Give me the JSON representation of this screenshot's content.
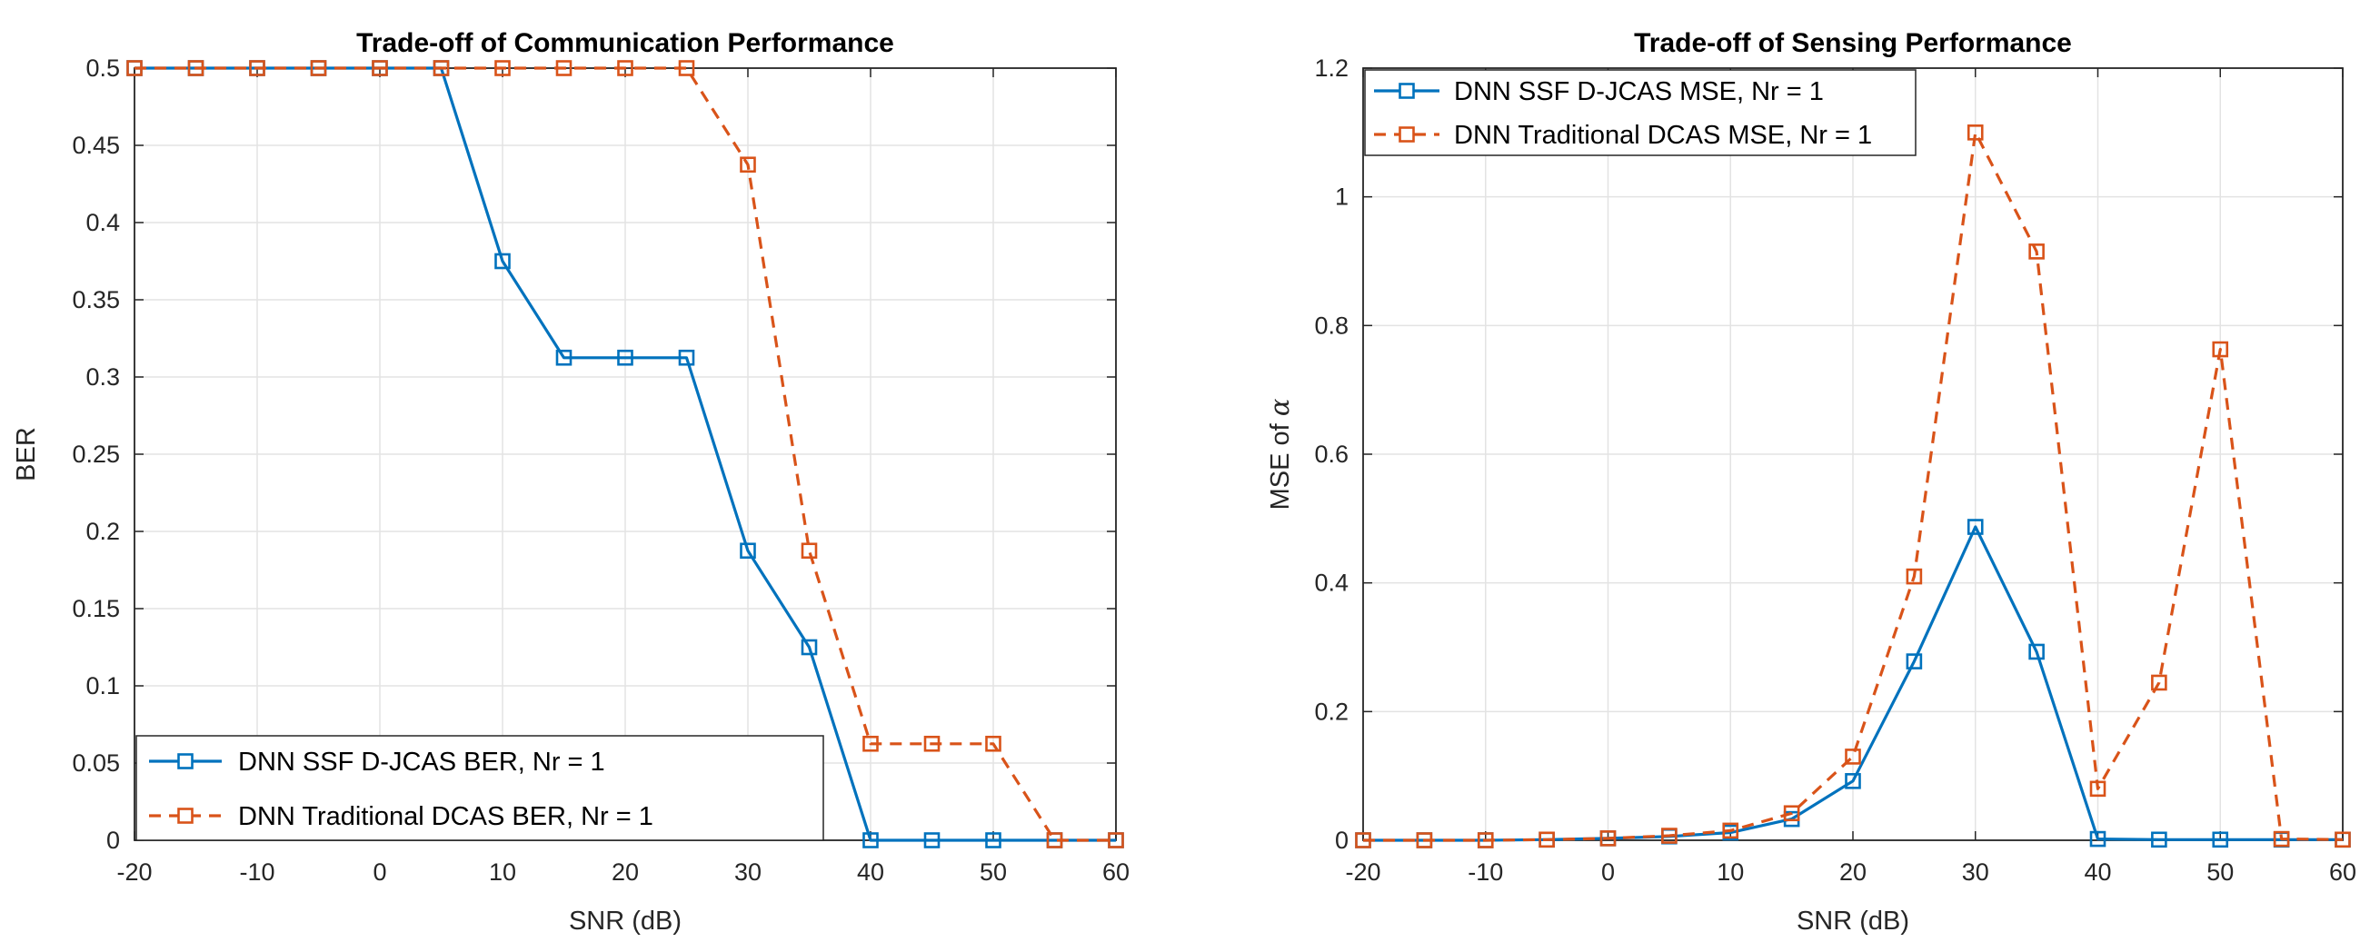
{
  "chart_data": [
    {
      "type": "line",
      "title": "Trade-off of Communication Performance",
      "xlabel": "SNR (dB)",
      "ylabel": "BER",
      "xlim": [
        -20,
        60
      ],
      "ylim": [
        0,
        0.5
      ],
      "xticks": [
        -20,
        -10,
        0,
        10,
        20,
        30,
        40,
        50,
        60
      ],
      "yticks": [
        0,
        0.05,
        0.1,
        0.15,
        0.2,
        0.25,
        0.3,
        0.35,
        0.4,
        0.45,
        0.5
      ],
      "xtick_labels": [
        "-20",
        "-10",
        "0",
        "10",
        "20",
        "30",
        "40",
        "50",
        "60"
      ],
      "ytick_labels": [
        "0",
        "0.05",
        "0.1",
        "0.15",
        "0.2",
        "0.25",
        "0.3",
        "0.35",
        "0.4",
        "0.45",
        "0.5"
      ],
      "grid": true,
      "legend_position": "bottom-left",
      "x": [
        -20,
        -15,
        -10,
        -5,
        0,
        5,
        10,
        15,
        20,
        25,
        30,
        35,
        40,
        45,
        50,
        55,
        60
      ],
      "series": [
        {
          "name": "DNN SSF D-JCAS BER, Nr = 1",
          "color": "#0072BD",
          "style": "solid",
          "values": [
            0.5,
            0.5,
            0.5,
            0.5,
            0.5,
            0.5,
            0.375,
            0.3125,
            0.3125,
            0.3125,
            0.1875,
            0.125,
            0,
            0,
            0,
            0,
            0
          ]
        },
        {
          "name": "DNN Traditional DCAS BER, Nr = 1",
          "color": "#D95319",
          "style": "dashed",
          "values": [
            0.5,
            0.5,
            0.5,
            0.5,
            0.5,
            0.5,
            0.5,
            0.5,
            0.5,
            0.5,
            0.4375,
            0.1875,
            0.0625,
            0.0625,
            0.0625,
            0,
            0
          ]
        }
      ]
    },
    {
      "type": "line",
      "title": "Trade-off of Sensing Performance",
      "xlabel": "SNR (dB)",
      "ylabel": "MSE of α",
      "ylabel_main": "MSE of ",
      "ylabel_symbol": "α",
      "xlim": [
        -20,
        60
      ],
      "ylim": [
        0,
        1.2
      ],
      "xticks": [
        -20,
        -10,
        0,
        10,
        20,
        30,
        40,
        50,
        60
      ],
      "yticks": [
        0,
        0.2,
        0.4,
        0.6,
        0.8,
        1,
        1.2
      ],
      "xtick_labels": [
        "-20",
        "-10",
        "0",
        "10",
        "20",
        "30",
        "40",
        "50",
        "60"
      ],
      "ytick_labels": [
        "0",
        "0.2",
        "0.4",
        "0.6",
        "0.8",
        "1",
        "1.2"
      ],
      "grid": true,
      "legend_position": "top-left",
      "x": [
        -20,
        -15,
        -10,
        -5,
        0,
        5,
        10,
        15,
        20,
        25,
        30,
        35,
        40,
        45,
        50,
        55,
        60
      ],
      "series": [
        {
          "name": "DNN SSF D-JCAS MSE, Nr = 1",
          "color": "#0072BD",
          "style": "solid",
          "values": [
            0,
            0,
            0,
            0.001,
            0.003,
            0.006,
            0.012,
            0.033,
            0.092,
            0.278,
            0.487,
            0.293,
            0.002,
            0.001,
            0.001,
            0.001,
            0.001
          ]
        },
        {
          "name": "DNN Traditional DCAS MSE, Nr = 1",
          "color": "#D95319",
          "style": "dashed",
          "values": [
            0,
            0,
            0,
            0.001,
            0.003,
            0.007,
            0.015,
            0.042,
            0.13,
            0.41,
            1.1,
            0.915,
            0.08,
            0.245,
            0.763,
            0.002,
            0.001
          ]
        }
      ]
    }
  ]
}
